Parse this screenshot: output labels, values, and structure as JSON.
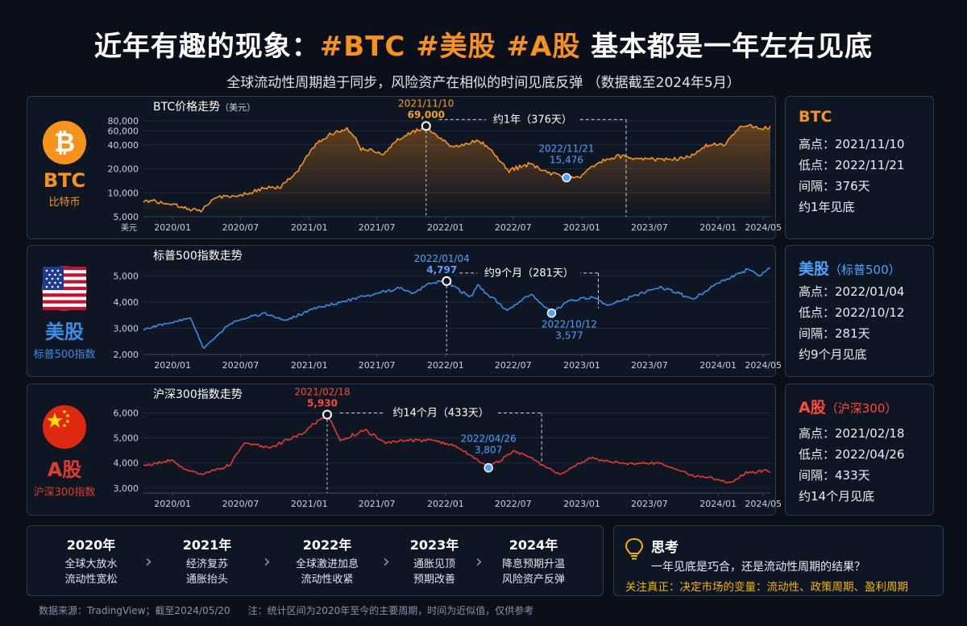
{
  "header": {
    "title_prefix": "近年有趣的现象：",
    "title_tags": "#BTC #美股 #A股",
    "title_suffix": " 基本都是一年左右见底",
    "subtitle": "全球流动性周期趋于同步，风险资产在相似的时间见底反弹 （数据截至2024年5月）"
  },
  "colors": {
    "btc": "#f7931a",
    "spx": "#3b8ee6",
    "csi": "#e23b2e",
    "accent": "#f7b500",
    "low": "#4fa3ff"
  },
  "panels": [
    {
      "key": "btc",
      "name": "BTC",
      "sub": "比特币",
      "icon": "bitcoin-icon",
      "chart_title": "BTC价格走势",
      "chart_unit": "（美元）",
      "axis_unit": "美元",
      "high_date": "2021/11/10",
      "high_value": "69,000",
      "low_date": "2022/11/21",
      "low_value": "15,476",
      "gap_label": "约1年（376天）",
      "info_title": "BTC",
      "info_title_sub": "",
      "info_high": "高点：2021/11/10",
      "info_low": "低点：2022/11/21",
      "info_gap": "间隔：376天",
      "info_conclusion": "约1年见底"
    },
    {
      "key": "spx",
      "name": "美股",
      "sub": "标普500指数",
      "icon": "us-flag-icon",
      "chart_title": "标普500指数走势",
      "chart_unit": "",
      "axis_unit": "",
      "high_date": "2022/01/04",
      "high_value": "4,797",
      "low_date": "2022/10/12",
      "low_value": "3,577",
      "gap_label": "约9个月（281天）",
      "info_title": "美股",
      "info_title_sub": "（标普500）",
      "info_high": "高点：2022/01/04",
      "info_low": "低点：2022/10/12",
      "info_gap": "间隔：281天",
      "info_conclusion": "约9个月见底"
    },
    {
      "key": "csi",
      "name": "A股",
      "sub": "沪深300指数",
      "icon": "china-flag-icon",
      "chart_title": "沪深300指数走势",
      "chart_unit": "",
      "axis_unit": "",
      "high_date": "2021/02/18",
      "high_value": "5,930",
      "low_date": "2022/04/26",
      "low_value": "3,807",
      "gap_label": "约14个月（433天）",
      "info_title": "A股",
      "info_title_sub": "（沪深300）",
      "info_high": "高点：2021/02/18",
      "info_low": "低点：2022/04/26",
      "info_gap": "间隔：433天",
      "info_conclusion": "约14个月见底"
    }
  ],
  "chart_data": [
    {
      "type": "line",
      "title": "BTC价格走势",
      "ylabel": "美元",
      "ylim": [
        5000,
        90000
      ],
      "yscale": "log",
      "yticks": [
        5000,
        10000,
        20000,
        40000,
        60000,
        80000
      ],
      "ytick_labels": [
        "5,000",
        "10,000",
        "20,000",
        "40,000",
        "60,000",
        "80,000"
      ],
      "xlim": [
        "2019-10-15",
        "2024-05-20"
      ],
      "xticks": [
        "2020/01",
        "2020/07",
        "2021/01",
        "2021/07",
        "2022/01",
        "2022/07",
        "2023/01",
        "2023/07",
        "2024/01",
        "2024/05"
      ],
      "series": [
        {
          "x": [
            "2019-10-15",
            "2020-01-01",
            "2020-03-15",
            "2020-05-01",
            "2020-07-01",
            "2020-09-01",
            "2020-10-15",
            "2020-12-01",
            "2021-01-10",
            "2021-02-20",
            "2021-04-14",
            "2021-05-20",
            "2021-07-20",
            "2021-09-01",
            "2021-10-20",
            "2021-11-10",
            "2021-12-15",
            "2022-01-20",
            "2022-03-01",
            "2022-04-01",
            "2022-05-15",
            "2022-06-18",
            "2022-08-15",
            "2022-09-20",
            "2022-11-21",
            "2023-01-01",
            "2023-02-15",
            "2023-04-10",
            "2023-06-15",
            "2023-08-30",
            "2023-10-15",
            "2023-12-15",
            "2024-01-20",
            "2024-03-14",
            "2024-04-20",
            "2024-05-20"
          ],
          "y": [
            8200,
            7200,
            5800,
            8800,
            9200,
            11500,
            11400,
            18500,
            36000,
            52000,
            63000,
            36000,
            31000,
            47000,
            62000,
            69000,
            48000,
            38000,
            41000,
            45000,
            29000,
            19000,
            23000,
            19000,
            15476,
            16600,
            24000,
            29000,
            26000,
            26000,
            28500,
            42000,
            40000,
            73000,
            64000,
            68000
          ]
        }
      ],
      "annotations": [
        {
          "label": "2021/11/10 69,000",
          "x": "2021-11-10",
          "y": 69000,
          "kind": "high"
        },
        {
          "label": "2022/11/21 15,476",
          "x": "2022-11-21",
          "y": 15476,
          "kind": "low"
        },
        {
          "label": "约1年（376天）"
        }
      ]
    },
    {
      "type": "line",
      "title": "标普500指数走势",
      "ylim": [
        2000,
        5500
      ],
      "yticks": [
        2000,
        3000,
        4000,
        5000
      ],
      "ytick_labels": [
        "2,000",
        "3,000",
        "4,000",
        "5,000"
      ],
      "xlim": [
        "2019-10-15",
        "2024-05-20"
      ],
      "xticks": [
        "2020/01",
        "2020/07",
        "2021/01",
        "2021/07",
        "2022/01",
        "2022/07",
        "2023/01",
        "2023/07",
        "2024/01",
        "2024/05"
      ],
      "series": [
        {
          "x": [
            "2019-10-15",
            "2020-01-01",
            "2020-02-19",
            "2020-03-23",
            "2020-06-08",
            "2020-09-02",
            "2020-10-30",
            "2021-01-04",
            "2021-04-01",
            "2021-07-01",
            "2021-09-02",
            "2021-10-04",
            "2021-11-18",
            "2022-01-04",
            "2022-03-08",
            "2022-03-29",
            "2022-06-16",
            "2022-08-16",
            "2022-10-12",
            "2022-12-01",
            "2023-02-02",
            "2023-03-13",
            "2023-07-31",
            "2023-10-27",
            "2024-01-02",
            "2024-03-28",
            "2024-04-19",
            "2024-05-20"
          ],
          "y": [
            2950,
            3230,
            3386,
            2237,
            3230,
            3580,
            3270,
            3700,
            4020,
            4320,
            4537,
            4300,
            4700,
            4797,
            4170,
            4630,
            3670,
            4300,
            3577,
            4080,
            4180,
            3860,
            4590,
            4117,
            4750,
            5250,
            4970,
            5300
          ]
        }
      ],
      "annotations": [
        {
          "label": "2022/01/04 4,797",
          "x": "2022-01-04",
          "y": 4797,
          "kind": "high"
        },
        {
          "label": "2022/10/12 3,577",
          "x": "2022-10-12",
          "y": 3577,
          "kind": "low"
        },
        {
          "label": "约9个月（281天）"
        }
      ]
    },
    {
      "type": "line",
      "title": "沪深300指数走势",
      "ylim": [
        2800,
        6400
      ],
      "yticks": [
        3000,
        4000,
        5000,
        6000
      ],
      "ytick_labels": [
        "3,000",
        "4,000",
        "5,000",
        "6,000"
      ],
      "xlim": [
        "2019-10-15",
        "2024-05-20"
      ],
      "xticks": [
        "2020/01",
        "2020/07",
        "2021/01",
        "2021/07",
        "2022/01",
        "2022/07",
        "2023/01",
        "2023/07",
        "2024/01",
        "2024/05"
      ],
      "series": [
        {
          "x": [
            "2019-10-15",
            "2020-01-01",
            "2020-02-03",
            "2020-03-23",
            "2020-06-01",
            "2020-07-10",
            "2020-09-15",
            "2020-11-01",
            "2020-12-15",
            "2021-02-18",
            "2021-03-25",
            "2021-06-01",
            "2021-07-28",
            "2021-09-15",
            "2021-12-01",
            "2022-01-20",
            "2022-03-15",
            "2022-04-26",
            "2022-07-04",
            "2022-08-15",
            "2022-10-31",
            "2023-01-28",
            "2023-05-01",
            "2023-07-31",
            "2023-10-23",
            "2023-12-15",
            "2024-02-02",
            "2024-03-15",
            "2024-05-10",
            "2024-05-20"
          ],
          "y": [
            3900,
            4100,
            3700,
            3550,
            3900,
            4800,
            4600,
            4900,
            5200,
            5930,
            4900,
            5300,
            4800,
            4900,
            4900,
            4700,
            4250,
            3807,
            4480,
            4200,
            3550,
            4200,
            3950,
            4000,
            3500,
            3400,
            3180,
            3600,
            3700,
            3650
          ]
        }
      ],
      "annotations": [
        {
          "label": "2021/02/18 5,930",
          "x": "2021-02-18",
          "y": 5930,
          "kind": "high"
        },
        {
          "label": "2022/04/26 3,807",
          "x": "2022-04-26",
          "y": 3807,
          "kind": "low"
        },
        {
          "label": "约14个月（433天）"
        }
      ]
    }
  ],
  "timeline": [
    {
      "year": "2020年",
      "l1": "全球大放水",
      "l2": "流动性宽松"
    },
    {
      "year": "2021年",
      "l1": "经济复苏",
      "l2": "通胀抬头"
    },
    {
      "year": "2022年",
      "l1": "全球激进加息",
      "l2": "流动性收紧"
    },
    {
      "year": "2023年",
      "l1": "通胀见顶",
      "l2": "预期改善"
    },
    {
      "year": "2024年",
      "l1": "降息预期升温",
      "l2": "风险资产反弹"
    }
  ],
  "think": {
    "title": "思考",
    "question": "一年见底是巧合，还是流动性周期的结果？",
    "focus": "关注真正：决定市场的变量：流动性、政策周期、盈利周期"
  },
  "footer": {
    "source": "数据来源：TradingView；截至2024/05/20",
    "note": "注：统计区间为2020年至今的主要周期，时间为近似值，仅供参考"
  }
}
